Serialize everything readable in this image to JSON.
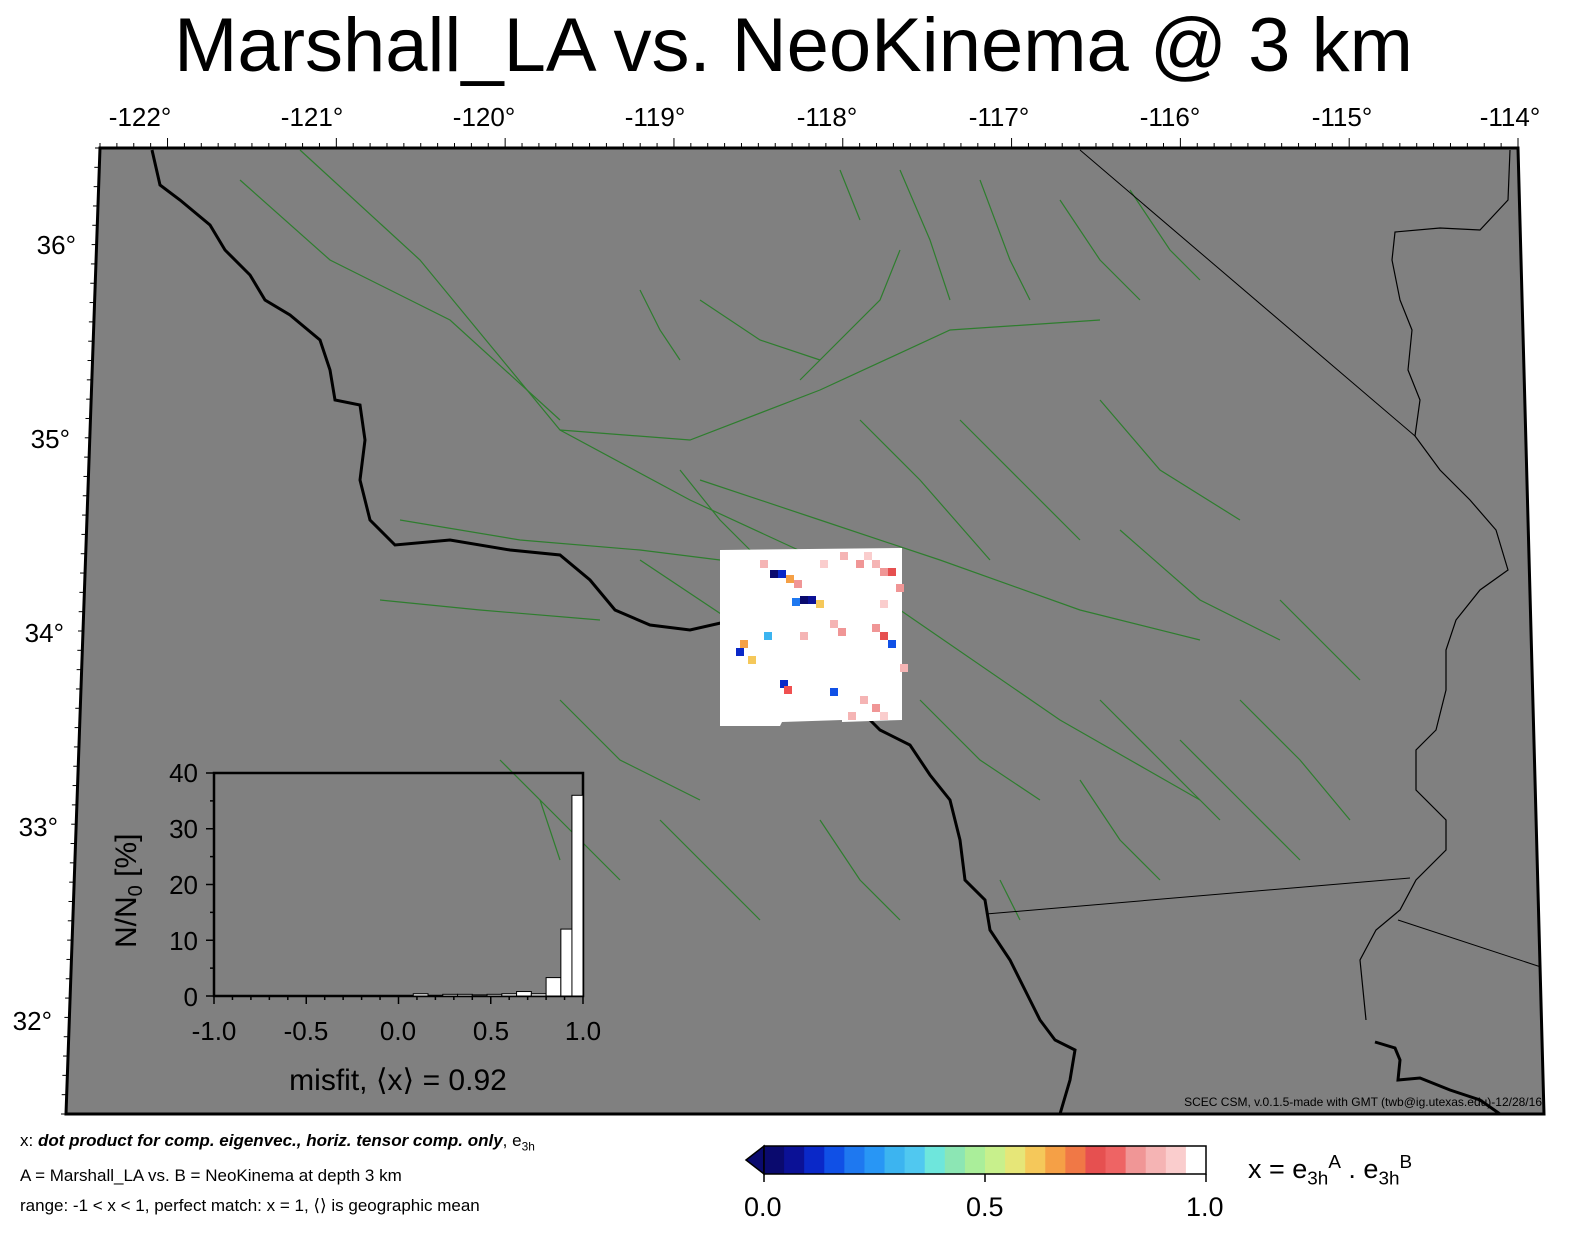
{
  "title": "Marshall_LA vs. NeoKinema @ 3 km",
  "map": {
    "lon_ticks": [
      "-122°",
      "-121°",
      "-120°",
      "-119°",
      "-118°",
      "-117°",
      "-116°",
      "-115°",
      "-114°"
    ],
    "lat_ticks": [
      "36°",
      "35°",
      "34°",
      "33°",
      "32°"
    ],
    "background_color": "#808080",
    "fault_color": "#2e7d2e",
    "coast_color": "#000000"
  },
  "credit": "SCEC CSM, v.0.1.5-made with GMT (twb@ig.utexas.edu)-12/28/16",
  "inset": {
    "ylabel": "N/N",
    "ylabel_sub": "0",
    "ylabel_suffix": " [%]",
    "y_ticks": [
      "40",
      "30",
      "20",
      "10",
      "0"
    ],
    "x_ticks": [
      "-1.0",
      "-0.5",
      "0.0",
      "0.5",
      "1.0"
    ],
    "misfit_label": "misfit, ⟨x⟩ = 0.92"
  },
  "chart_data": {
    "type": "bar",
    "title": "",
    "xlabel": "misfit, ⟨x⟩ = 0.92",
    "ylabel": "N/N0 [%]",
    "xlim": [
      -1.0,
      1.0
    ],
    "ylim": [
      0,
      40
    ],
    "bin_width": 0.08,
    "bin_centers": [
      0.12,
      0.28,
      0.36,
      0.44,
      0.52,
      0.6,
      0.68,
      0.76,
      0.84,
      0.92,
      0.98
    ],
    "values": [
      0.4,
      0.3,
      0.3,
      0.2,
      0.3,
      0.4,
      0.8,
      0.4,
      3.3,
      12.0,
      36.0
    ]
  },
  "footnotes": {
    "line1_prefix": "x: ",
    "line1_bold": "dot product for comp. eigenvec., horiz. tensor comp. only",
    "line1_suffix": ", e",
    "line1_sub": "3h",
    "line2": "A = Marshall_LA vs.  B = NeoKinema at depth 3 km",
    "line3": "range: -1 < x < 1, perfect match: x = 1, ⟨⟩ is geographic mean"
  },
  "colorbar": {
    "label_prefix": "x = e",
    "label_sub1": "3h",
    "label_sup1": "A",
    "label_mid": " . e",
    "label_sub2": "3h",
    "label_sup2": "B",
    "ticks": [
      "0.0",
      "0.5",
      "1.0"
    ],
    "colors": [
      "#0a0a6e",
      "#0b1196",
      "#0a28c8",
      "#1050e6",
      "#1e78f0",
      "#2896f5",
      "#3cb4f0",
      "#50c8f0",
      "#6ee6dc",
      "#8ce6b4",
      "#aaee9a",
      "#c8f08c",
      "#e6e678",
      "#f5c85a",
      "#f5a046",
      "#f07846",
      "#e65050",
      "#ee6464",
      "#f09696",
      "#f5b4b4",
      "#facdcd",
      "#ffffff"
    ]
  }
}
